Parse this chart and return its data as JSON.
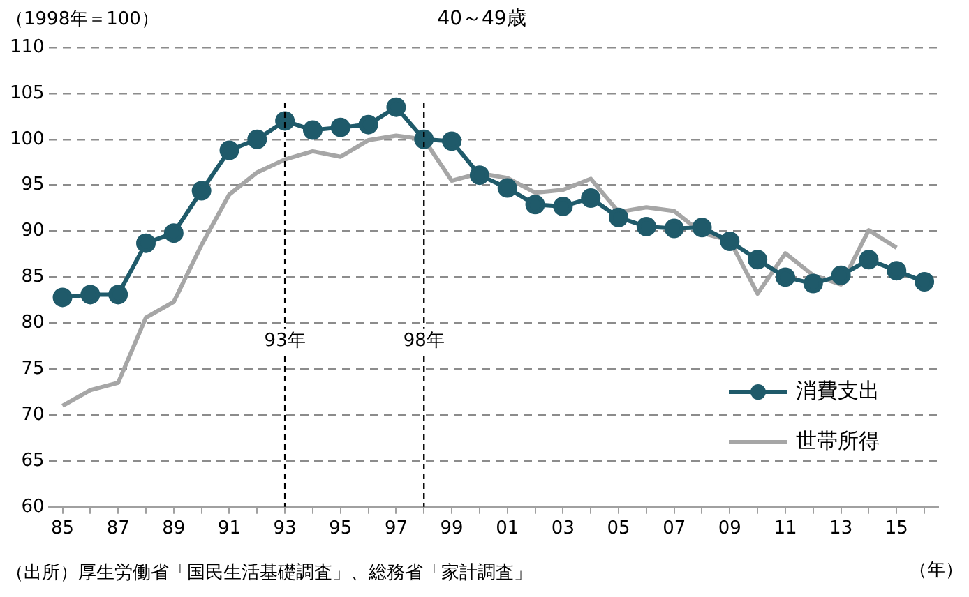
{
  "chart_data": {
    "type": "line",
    "title": "40～49歳",
    "ylabel": "（1998年＝100）",
    "xlabel": "（年）",
    "x": [
      1985,
      1986,
      1987,
      1988,
      1989,
      1990,
      1991,
      1992,
      1993,
      1994,
      1995,
      1996,
      1997,
      1998,
      1999,
      2000,
      2001,
      2002,
      2003,
      2004,
      2005,
      2006,
      2007,
      2008,
      2009,
      2010,
      2011,
      2012,
      2013,
      2014,
      2015,
      2016
    ],
    "series": [
      {
        "name": "消費支出",
        "color": "#1f5a6a",
        "marker": "circle",
        "values": [
          82.8,
          83.1,
          83.1,
          88.7,
          89.8,
          94.4,
          98.8,
          100.0,
          102.0,
          101.0,
          101.3,
          101.6,
          103.5,
          100.0,
          99.8,
          96.1,
          94.7,
          92.9,
          92.7,
          93.6,
          91.5,
          90.5,
          90.3,
          90.4,
          88.9,
          86.9,
          85.0,
          84.3,
          85.2,
          86.9,
          85.7,
          84.5
        ]
      },
      {
        "name": "世帯所得",
        "color": "#a6a6a6",
        "marker": "none",
        "values": [
          71.0,
          72.7,
          73.5,
          80.6,
          82.3,
          88.5,
          94.0,
          96.4,
          97.8,
          98.7,
          98.1,
          99.9,
          100.4,
          100.0,
          95.5,
          96.3,
          95.8,
          94.2,
          94.5,
          95.7,
          92.1,
          92.6,
          92.2,
          89.8,
          89.0,
          83.2,
          87.6,
          85.2,
          84.2,
          90.1,
          88.2,
          null
        ]
      }
    ],
    "xlim": [
      1984.5,
      2016.5
    ],
    "xticks": [
      {
        "value": 1985,
        "label": "85"
      },
      {
        "value": 1986,
        "label": null
      },
      {
        "value": 1987,
        "label": "87"
      },
      {
        "value": 1988,
        "label": null
      },
      {
        "value": 1989,
        "label": "89"
      },
      {
        "value": 1990,
        "label": null
      },
      {
        "value": 1991,
        "label": "91"
      },
      {
        "value": 1992,
        "label": null
      },
      {
        "value": 1993,
        "label": "93"
      },
      {
        "value": 1994,
        "label": null
      },
      {
        "value": 1995,
        "label": "95"
      },
      {
        "value": 1996,
        "label": null
      },
      {
        "value": 1997,
        "label": "97"
      },
      {
        "value": 1998,
        "label": null
      },
      {
        "value": 1999,
        "label": "99"
      },
      {
        "value": 2000,
        "label": null
      },
      {
        "value": 2001,
        "label": "01"
      },
      {
        "value": 2002,
        "label": null
      },
      {
        "value": 2003,
        "label": "03"
      },
      {
        "value": 2004,
        "label": null
      },
      {
        "value": 2005,
        "label": "05"
      },
      {
        "value": 2006,
        "label": null
      },
      {
        "value": 2007,
        "label": "07"
      },
      {
        "value": 2008,
        "label": null
      },
      {
        "value": 2009,
        "label": "09"
      },
      {
        "value": 2010,
        "label": null
      },
      {
        "value": 2011,
        "label": "11"
      },
      {
        "value": 2012,
        "label": null
      },
      {
        "value": 2013,
        "label": "13"
      },
      {
        "value": 2014,
        "label": null
      },
      {
        "value": 2015,
        "label": "15"
      },
      {
        "value": 2016,
        "label": null
      }
    ],
    "ylim": [
      60,
      110
    ],
    "yticks": [
      60,
      65,
      70,
      75,
      80,
      85,
      90,
      95,
      100,
      105,
      110
    ],
    "grid": "y",
    "legend": "bottom right",
    "ref_lines": [
      {
        "axis": "x",
        "value": 1993,
        "label": "93年",
        "color": "#000000",
        "line_style": "dashed"
      },
      {
        "axis": "x",
        "value": 1998,
        "label": "98年",
        "color": "#000000",
        "line_style": "dashed"
      }
    ],
    "annotations": [
      "（出所）厚生労働省「国民生活基礎調査」、総務省「家計調査」"
    ]
  }
}
